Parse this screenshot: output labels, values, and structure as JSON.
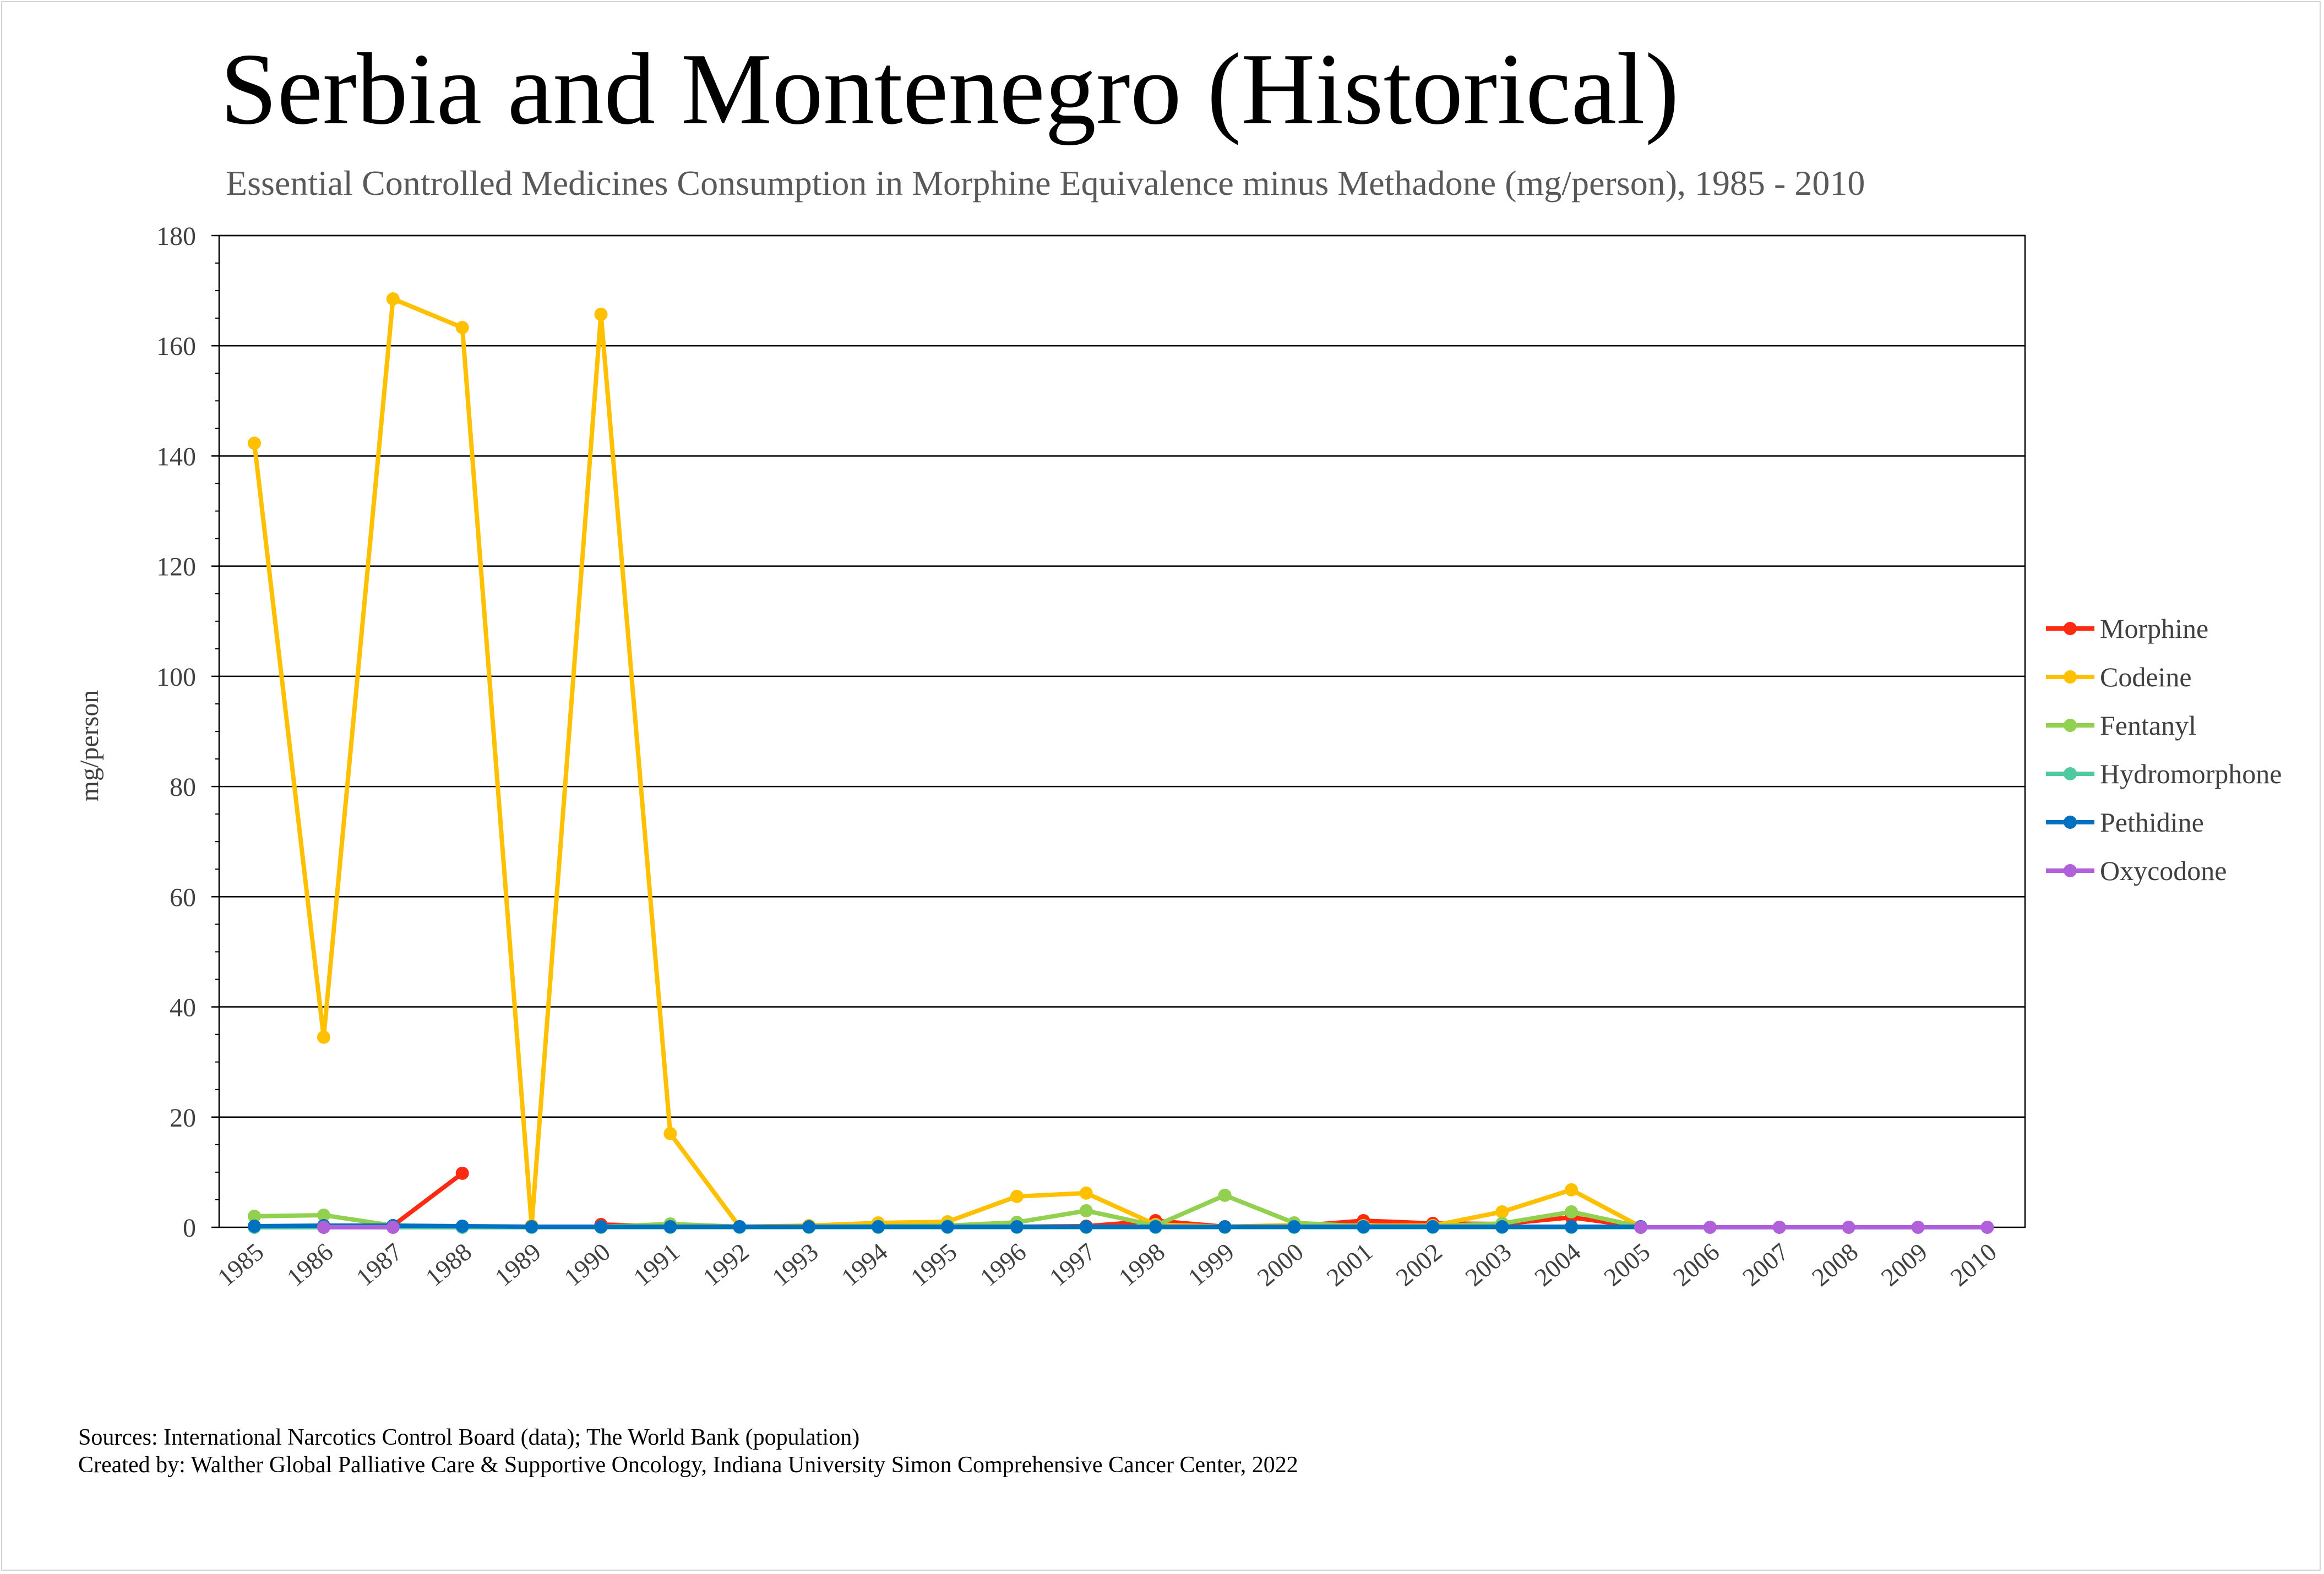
{
  "chart_data": {
    "type": "line",
    "title": "Serbia and Montenegro (Historical)",
    "subtitle": "Essential Controlled Medicines Consumption in Morphine Equivalence minus Methadone (mg/person), 1985 - 2010",
    "xlabel": "",
    "ylabel": "mg/person",
    "ylim": [
      0,
      180
    ],
    "yticks": [
      0,
      20,
      40,
      60,
      80,
      100,
      120,
      140,
      160,
      180
    ],
    "grid": true,
    "legend_position": "right",
    "categories": [
      "1985",
      "1986",
      "1987",
      "1988",
      "1989",
      "1990",
      "1991",
      "1992",
      "1993",
      "1994",
      "1995",
      "1996",
      "1997",
      "1998",
      "1999",
      "2000",
      "2001",
      "2002",
      "2003",
      "2004",
      "2005",
      "2006",
      "2007",
      "2008",
      "2009",
      "2010"
    ],
    "series": [
      {
        "name": "Morphine",
        "color": "#ff2a12",
        "values": [
          null,
          null,
          0.3,
          9.8,
          null,
          0.5,
          0.2,
          0.1,
          0.1,
          0.1,
          0.1,
          0.1,
          0.2,
          1.2,
          0.1,
          0.2,
          1.2,
          0.7,
          0.6,
          1.8,
          0.1,
          null,
          null,
          null,
          null,
          null
        ]
      },
      {
        "name": "Codeine",
        "color": "#ffc000",
        "values": [
          142.3,
          34.5,
          168.5,
          163.3,
          0.3,
          165.7,
          17.0,
          0.1,
          0.3,
          0.8,
          1.0,
          5.6,
          6.2,
          0.5,
          0.1,
          0.4,
          0.3,
          0.3,
          2.8,
          6.8,
          0.1,
          null,
          null,
          null,
          null,
          null
        ]
      },
      {
        "name": "Fentanyl",
        "color": "#92d050",
        "values": [
          2.0,
          2.2,
          0.3,
          0.1,
          0.1,
          0.1,
          0.6,
          0.1,
          0.1,
          0.2,
          0.3,
          0.9,
          3.0,
          0.3,
          5.8,
          0.8,
          0.2,
          0.2,
          0.7,
          2.8,
          0.1,
          null,
          null,
          null,
          null,
          null
        ]
      },
      {
        "name": "Hydromorphone",
        "color": "#4ec9a0",
        "values": [
          0,
          0,
          0,
          0,
          0,
          0,
          0,
          0,
          0,
          0,
          0,
          0,
          0,
          0,
          0,
          0,
          0,
          0,
          0,
          0,
          0,
          null,
          null,
          null,
          null,
          null
        ]
      },
      {
        "name": "Pethidine",
        "color": "#0070c0",
        "values": [
          0.2,
          0.3,
          0.3,
          0.2,
          0.1,
          0.1,
          0.1,
          0.1,
          0.1,
          0.1,
          0.1,
          0.1,
          0.1,
          0.1,
          0.1,
          0.1,
          0.1,
          0.1,
          0.1,
          0.1,
          0.1,
          null,
          null,
          null,
          null,
          null
        ]
      },
      {
        "name": "Oxycodone",
        "color": "#b060d8",
        "values": [
          null,
          0,
          0,
          null,
          null,
          null,
          null,
          null,
          null,
          null,
          null,
          null,
          null,
          null,
          null,
          null,
          null,
          null,
          null,
          null,
          0,
          0,
          0,
          0,
          0,
          0
        ]
      }
    ]
  },
  "footer": {
    "sources": "Sources: International Narcotics Control Board (data); The World Bank (population)",
    "credits": "Created by: Walther Global Palliative Care & Supportive Oncology, Indiana University Simon Comprehensive Cancer Center, 2022"
  }
}
